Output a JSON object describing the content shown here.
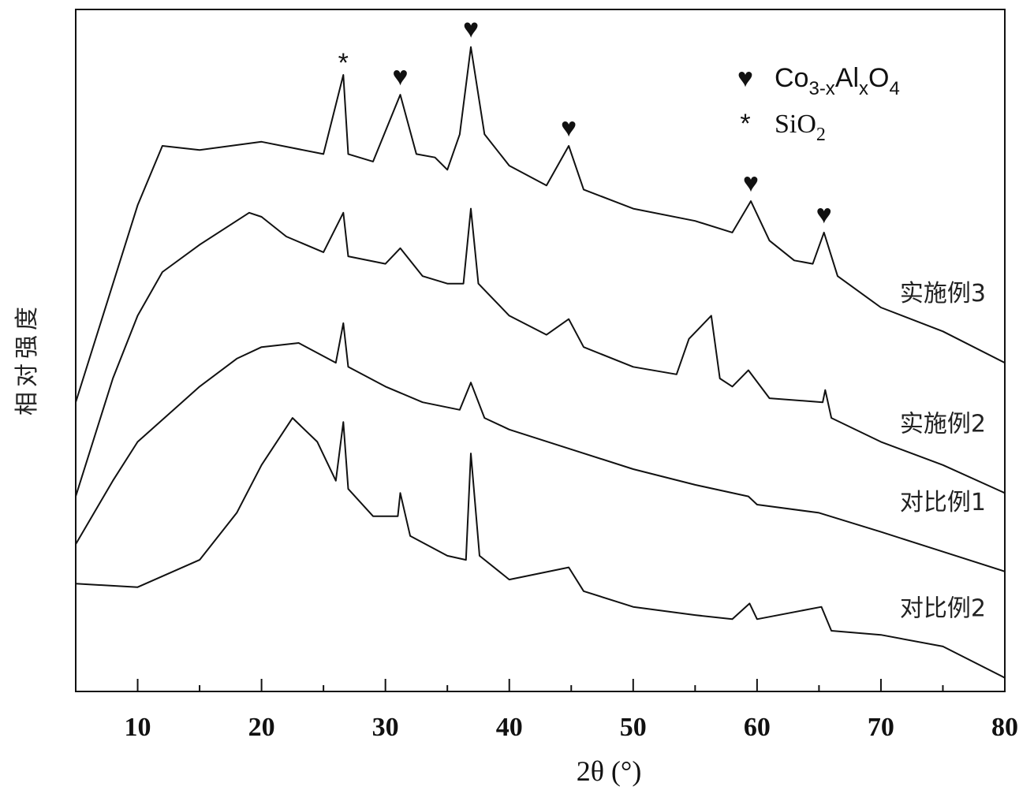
{
  "chart_data": {
    "type": "line",
    "x_label": "2θ (°)",
    "y_label": "相对强度",
    "xlim": [
      5,
      80
    ],
    "ylim": [
      0,
      100
    ],
    "xticks": [
      10,
      20,
      30,
      40,
      50,
      60,
      70,
      80
    ],
    "xminorticks": [
      15,
      25,
      35,
      45,
      55,
      65,
      75
    ],
    "series": [
      {
        "name": "实施例3",
        "color": "#111111",
        "x": [
          5,
          10,
          12,
          15,
          20,
          25,
          26.6,
          27,
          29,
          31.2,
          32.5,
          34,
          35,
          36,
          36.9,
          38,
          40,
          43,
          44.8,
          46,
          50,
          55,
          58,
          59.5,
          61,
          63,
          64.5,
          65.4,
          66.5,
          70,
          75,
          80
        ],
        "values": [
          42.4,
          71.3,
          80.0,
          79.4,
          80.6,
          78.8,
          90.4,
          78.8,
          77.7,
          87.5,
          78.8,
          78.3,
          76.5,
          81.7,
          94.5,
          81.7,
          77.1,
          74.2,
          80.0,
          73.6,
          70.8,
          69.0,
          67.3,
          71.9,
          66.1,
          63.2,
          62.7,
          67.3,
          60.9,
          56.3,
          52.8,
          48.2
        ]
      },
      {
        "name": "实施例2",
        "color": "#111111",
        "x": [
          5,
          8,
          10,
          12,
          15,
          19,
          20,
          22,
          25,
          26.6,
          27,
          30,
          31.2,
          33,
          35,
          36.3,
          36.9,
          37.5,
          40,
          43,
          44.8,
          46,
          50,
          53.5,
          54.5,
          56.3,
          57,
          58,
          59.3,
          61,
          65.3,
          65.5,
          66,
          70,
          75,
          80
        ],
        "values": [
          28.6,
          45.9,
          55.1,
          61.5,
          65.5,
          70.2,
          69.6,
          66.7,
          64.4,
          70.2,
          63.8,
          62.7,
          65.0,
          60.9,
          59.8,
          59.8,
          70.8,
          59.8,
          55.1,
          52.3,
          54.6,
          50.5,
          47.6,
          46.5,
          51.7,
          55.1,
          45.9,
          44.7,
          47.1,
          43.0,
          42.4,
          44.2,
          40.1,
          36.6,
          33.2,
          29.1
        ]
      },
      {
        "name": "对比例1",
        "color": "#111111",
        "x": [
          5,
          8,
          10,
          15,
          18,
          20,
          23,
          26,
          26.6,
          27,
          30,
          33,
          36,
          36.9,
          38,
          40,
          45,
          50,
          55,
          59.3,
          60,
          65,
          70,
          75,
          80
        ],
        "values": [
          21.6,
          30.9,
          36.6,
          44.7,
          48.8,
          50.5,
          51.1,
          48.2,
          54.0,
          47.6,
          44.7,
          42.4,
          41.3,
          45.3,
          40.1,
          38.4,
          35.5,
          32.6,
          30.3,
          28.6,
          27.4,
          26.2,
          23.4,
          20.5,
          17.6
        ]
      },
      {
        "name": "对比例2",
        "color": "#111111",
        "x": [
          5,
          10,
          15,
          18,
          20,
          22.5,
          24.5,
          26,
          26.6,
          27,
          29,
          31,
          31.2,
          32,
          35,
          36.5,
          36.9,
          37.6,
          40,
          44.8,
          46,
          50,
          55,
          58,
          59.4,
          60,
          65.2,
          66,
          70,
          75,
          80
        ],
        "values": [
          15.8,
          15.3,
          19.3,
          26.2,
          33.2,
          40.1,
          36.6,
          30.9,
          39.5,
          29.7,
          25.7,
          25.7,
          29.1,
          22.8,
          19.9,
          19.3,
          34.9,
          19.9,
          16.4,
          18.2,
          14.7,
          12.4,
          11.2,
          10.6,
          12.9,
          10.6,
          12.4,
          8.9,
          8.3,
          6.6,
          2.0
        ]
      }
    ],
    "annotations": [
      {
        "text": "*",
        "x": 26.6
      },
      {
        "text": "♥",
        "x": 31.2
      },
      {
        "text": "♥",
        "x": 36.9
      },
      {
        "text": "♥",
        "x": 44.8
      },
      {
        "text": "♥",
        "x": 59.5
      },
      {
        "text": "♥",
        "x": 65.4
      }
    ],
    "legend": [
      {
        "symbol": "♥",
        "parts": [
          "Co",
          "3-x",
          "Al",
          "x",
          "O",
          "4"
        ]
      },
      {
        "symbol": "*",
        "parts": [
          "SiO",
          "2"
        ]
      }
    ]
  }
}
